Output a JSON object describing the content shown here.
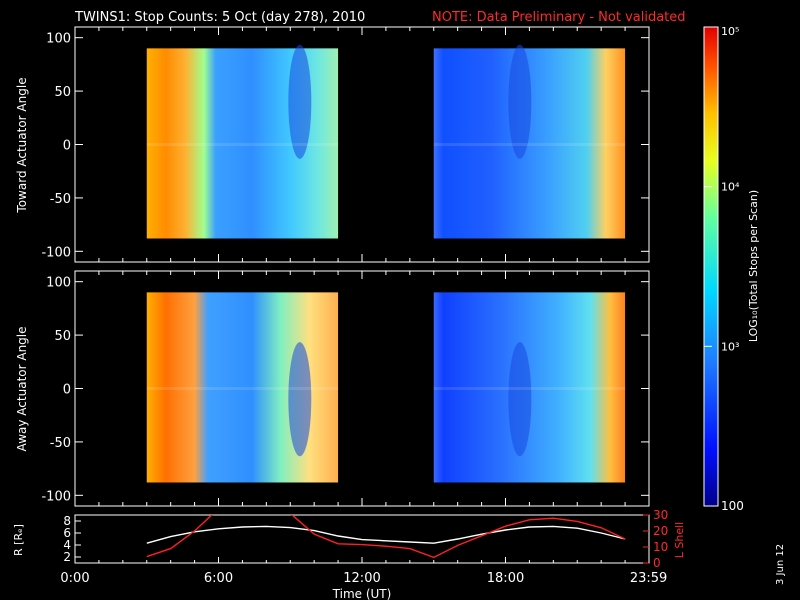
{
  "header": {
    "title": "TWINS1: Stop Counts:  5 Oct (day 278), 2010",
    "note": "NOTE: Data Preliminary - Not validated",
    "note_color": "#ff2020"
  },
  "side_date": "3 Jun 12",
  "colorbar": {
    "label": "LOG₁₀(Total Stops per Scan)",
    "ticks": [
      "10⁵",
      "10⁴",
      "10³",
      "100"
    ],
    "range": [
      100,
      100000
    ],
    "scale": "log"
  },
  "chart_data": [
    {
      "type": "heatmap",
      "ylabel": "Toward Actuator Angle",
      "ylim": [
        -110,
        110
      ],
      "yticks": [
        "100",
        "50",
        "0",
        "-50",
        "-100"
      ],
      "xlim": [
        0,
        24
      ],
      "data_windows_hours": [
        [
          3.0,
          11.0
        ],
        [
          15.0,
          23.0
        ]
      ],
      "angle_range": [
        -88,
        90
      ]
    },
    {
      "type": "heatmap",
      "ylabel": "Away Actuator Angle",
      "ylim": [
        -110,
        110
      ],
      "yticks": [
        "100",
        "50",
        "0",
        "-50",
        "-100"
      ],
      "xlim": [
        0,
        24
      ],
      "data_windows_hours": [
        [
          3.0,
          11.0
        ],
        [
          15.0,
          23.0
        ]
      ],
      "angle_range": [
        -88,
        90
      ]
    },
    {
      "type": "line",
      "xlabel": "Time (UT)",
      "xticks": [
        "0:00",
        "6:00",
        "12:00",
        "18:00",
        "23:59"
      ],
      "xlim": [
        0,
        24
      ],
      "ylabel_left": "R [Rₑ]",
      "ylim_left": [
        1,
        9
      ],
      "yticks_left": [
        "2",
        "4",
        "6",
        "8"
      ],
      "ylabel_right": "L Shell",
      "ylim_right": [
        0,
        30
      ],
      "yticks_right": [
        "0",
        "10",
        "20",
        "30"
      ],
      "series": [
        {
          "axis": "left",
          "color": "#ffffff",
          "x": [
            3.0,
            4.0,
            5.0,
            6.0,
            7.0,
            8.0,
            9.0,
            10.0,
            11.0,
            12.0,
            13.0,
            14.0,
            15.0,
            16.0,
            17.0,
            18.0,
            19.0,
            20.0,
            21.0,
            22.0,
            23.0
          ],
          "y": [
            4.3,
            5.4,
            6.2,
            6.7,
            7.0,
            7.1,
            6.9,
            6.4,
            5.5,
            4.9,
            4.7,
            4.5,
            4.3,
            5.0,
            5.8,
            6.5,
            7.0,
            7.1,
            6.8,
            6.0,
            5.0
          ]
        },
        {
          "axis": "right",
          "color": "#ff2020",
          "x": [
            3.0,
            4.0,
            5.0,
            6.0,
            7.0,
            8.0,
            9.0,
            10.0,
            11.0,
            12.0,
            13.0,
            14.0,
            15.0,
            16.0,
            17.0,
            18.0,
            19.0,
            20.0,
            21.0,
            22.0,
            23.0
          ],
          "y": [
            4.0,
            9.0,
            20.0,
            34.0,
            40.0,
            40.0,
            31.0,
            18.0,
            12.0,
            11.5,
            10.5,
            9.0,
            3.5,
            11.0,
            17.0,
            23.0,
            27.0,
            28.0,
            26.0,
            22.0,
            15.0
          ]
        }
      ]
    }
  ]
}
